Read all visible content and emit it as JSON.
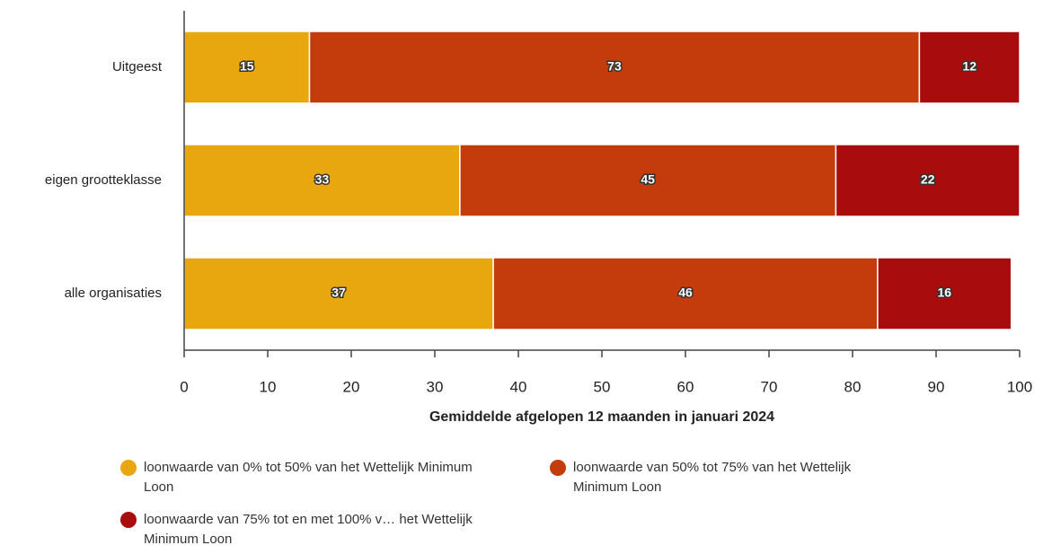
{
  "chart_data": {
    "type": "bar",
    "orientation": "horizontal",
    "stacked": true,
    "x_label": "Gemiddelde afgelopen 12 maanden in januari 2024",
    "categories": [
      "Uitgeest",
      "eigen grootteklasse",
      "alle organisaties"
    ],
    "series": [
      {
        "name": "loonwaarde van 0% tot 50% van het Wettelijk Minimum Loon",
        "color": "#e8a60f",
        "values": [
          15,
          33,
          37
        ]
      },
      {
        "name": "loonwaarde van 50% tot 75% van het Wettelijk Minimum Loon",
        "color": "#c43c0c",
        "values": [
          73,
          45,
          46
        ]
      },
      {
        "name": "loonwaarde van 75% tot en met 100% v… het Wettelijk Minimum Loon",
        "color": "#a80c0c",
        "values": [
          12,
          22,
          16
        ]
      }
    ],
    "xlim": [
      0,
      100
    ],
    "xticks": [
      0,
      10,
      20,
      30,
      40,
      50,
      60,
      70,
      80,
      90,
      100
    ]
  }
}
